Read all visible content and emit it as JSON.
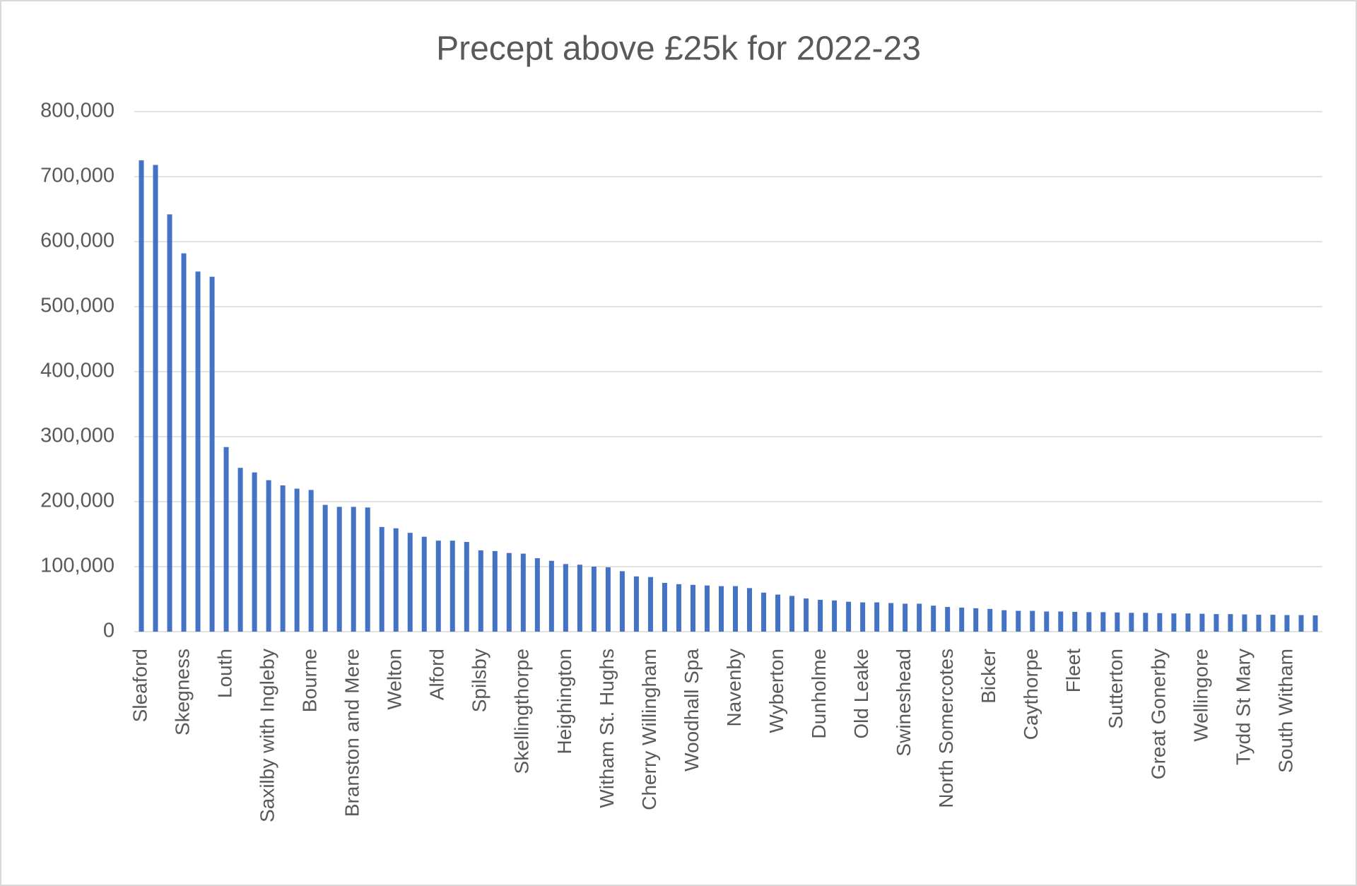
{
  "chart_data": {
    "type": "bar",
    "title": "Precept above £25k for 2022-23",
    "categories": [
      "Sleaford",
      null,
      null,
      "Skegness",
      null,
      null,
      "Louth",
      null,
      null,
      "Saxilby with Ingleby",
      null,
      null,
      "Bourne",
      null,
      null,
      "Branston and Mere",
      null,
      null,
      "Welton",
      null,
      null,
      "Alford",
      null,
      null,
      "Spilsby",
      null,
      null,
      "Skellingthorpe",
      null,
      null,
      "Heighington",
      null,
      null,
      "Witham St. Hughs",
      null,
      null,
      "Cherry Willingham",
      null,
      null,
      "Woodhall Spa",
      null,
      null,
      "Navenby",
      null,
      null,
      "Wyberton",
      null,
      null,
      "Dunholme",
      null,
      null,
      "Old Leake",
      null,
      null,
      "Swineshead",
      null,
      null,
      "North Somercotes",
      null,
      null,
      "Bicker",
      null,
      null,
      "Caythorpe",
      null,
      null,
      "Fleet",
      null,
      null,
      "Sutterton",
      null,
      null,
      "Great Gonerby",
      null,
      null,
      "Wellingore",
      null,
      null,
      "Tydd St Mary",
      null,
      null,
      "South Witham",
      null,
      null
    ],
    "values": [
      725000,
      718000,
      642000,
      582000,
      554000,
      546000,
      284000,
      252000,
      245000,
      233000,
      225000,
      220000,
      218000,
      195000,
      192000,
      192000,
      191000,
      161000,
      159000,
      152000,
      146000,
      140000,
      140000,
      138000,
      125000,
      124000,
      121000,
      120000,
      113000,
      109000,
      104000,
      103000,
      100000,
      99000,
      93000,
      85000,
      84000,
      75000,
      73000,
      72000,
      71000,
      70000,
      70000,
      67000,
      60000,
      57000,
      55000,
      51000,
      49000,
      48000,
      46000,
      45000,
      45000,
      44000,
      43000,
      43000,
      40000,
      38000,
      37000,
      36000,
      35000,
      33000,
      32000,
      32000,
      31000,
      31000,
      30500,
      30000,
      30000,
      29500,
      29000,
      29000,
      28500,
      28000,
      28000,
      27500,
      27000,
      27000,
      26500,
      26000,
      26000,
      25500,
      25500,
      25000
    ],
    "color": "#4472c4",
    "ylim": [
      0,
      800000
    ],
    "yticks": [
      0,
      {
        "value": 100000,
        "label": "100,000"
      },
      {
        "value": 200000,
        "label": "200,000"
      },
      {
        "value": 300000,
        "label": "300,000"
      },
      {
        "value": 400000,
        "label": "400,000"
      },
      {
        "value": 500000,
        "label": "500,000"
      },
      {
        "value": 600000,
        "label": "600,000"
      },
      {
        "value": 700000,
        "label": "700,000"
      },
      {
        "value": 800000,
        "label": "800,000"
      }
    ],
    "grid": true
  }
}
